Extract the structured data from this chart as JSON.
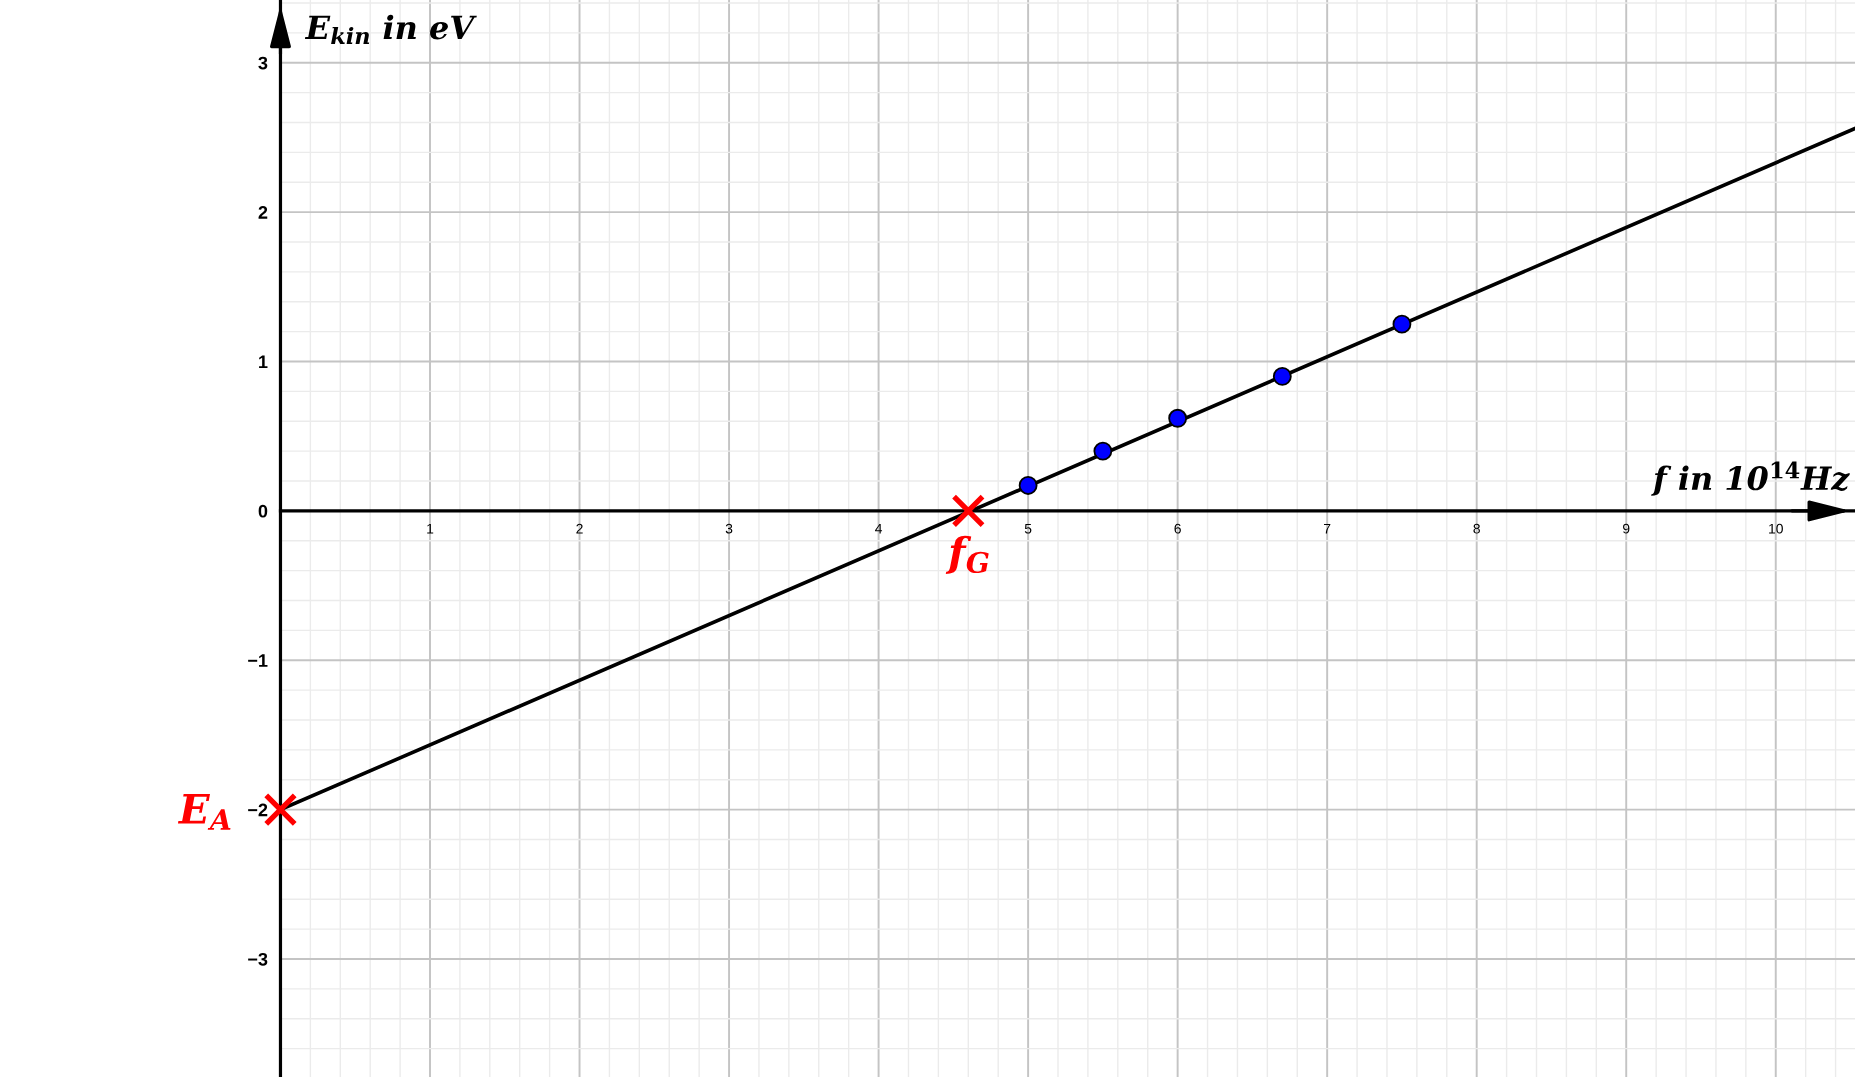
{
  "chart_data": {
    "type": "scatter",
    "xlabel": "f in 10$^{14}$Hz",
    "ylabel": "E$_{kin}$ in eV",
    "xlim": [
      0,
      10.53
    ],
    "ylim": [
      -3.79,
      3.42
    ],
    "xticks": [
      1,
      2,
      3,
      4,
      5,
      6,
      7,
      8,
      9,
      10
    ],
    "yticks": [
      -3,
      -2,
      -1,
      0,
      1,
      2,
      3
    ],
    "grid": true,
    "series": [
      {
        "type": "line",
        "color": "#000000",
        "x": [
          0,
          10.53
        ],
        "values": [
          -2,
          2.56
        ],
        "line_style": "solid"
      },
      {
        "color": "#0000ff",
        "x": [
          5,
          5.5,
          6,
          6.7,
          7.5
        ],
        "values": [
          0.17,
          0.4,
          0.62,
          0.9,
          1.25
        ],
        "marker": "circle"
      },
      {
        "color": "#ff0000",
        "x": [
          0,
          4.6
        ],
        "values": [
          -2,
          0
        ],
        "marker": "cross"
      }
    ],
    "annotations": [
      {
        "text": "E$_{A}$",
        "x": 0,
        "y": -2
      },
      {
        "text": "f$_{G}$",
        "x": 4.6,
        "y": 0
      }
    ]
  }
}
